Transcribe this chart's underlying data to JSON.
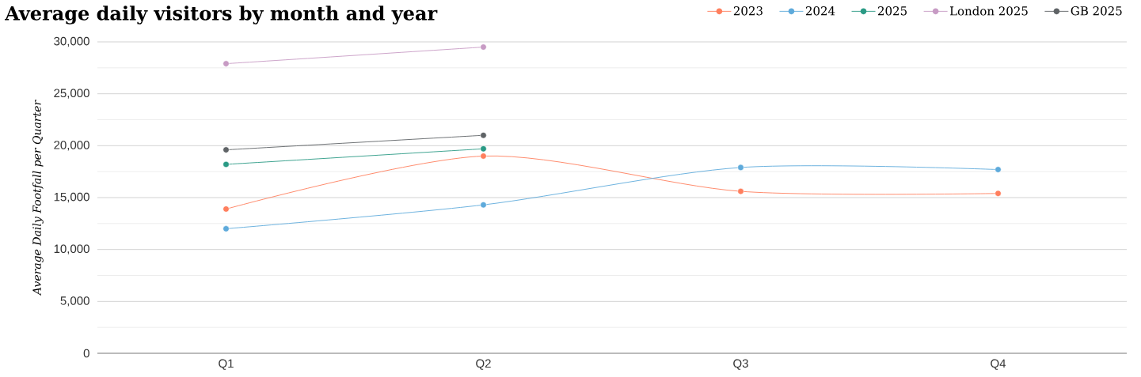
{
  "chart_data": {
    "type": "line",
    "title": "Average daily visitors by month and year",
    "ylabel": "Average Daily Footfall per Quarter",
    "categories": [
      "Q1",
      "Q2",
      "Q3",
      "Q4"
    ],
    "series": [
      {
        "name": "2023",
        "color": "#ff7f5e",
        "values": [
          13900,
          19000,
          15600,
          15400
        ]
      },
      {
        "name": "2024",
        "color": "#5eaadb",
        "values": [
          12000,
          14300,
          17900,
          17700
        ]
      },
      {
        "name": "2025",
        "color": "#2a9a85",
        "values": [
          18200,
          19700,
          null,
          null
        ]
      },
      {
        "name": "London 2025",
        "color": "#c79bc4",
        "values": [
          27900,
          29500,
          null,
          null
        ]
      },
      {
        "name": "GB 2025",
        "color": "#5f6366",
        "values": [
          19600,
          21000,
          null,
          null
        ]
      }
    ],
    "ylim": [
      0,
      30000
    ],
    "yticks": [
      {
        "value": 0,
        "label": "0"
      },
      {
        "value": 5000,
        "label": "5,000"
      },
      {
        "value": 10000,
        "label": "10,000"
      },
      {
        "value": 15000,
        "label": "15,000"
      },
      {
        "value": 20000,
        "label": "20,000"
      },
      {
        "value": 25000,
        "label": "25,000"
      },
      {
        "value": 30000,
        "label": "30,000"
      }
    ],
    "grid": "y",
    "legend": "top right",
    "marker": "circle",
    "line_style": "solid"
  }
}
